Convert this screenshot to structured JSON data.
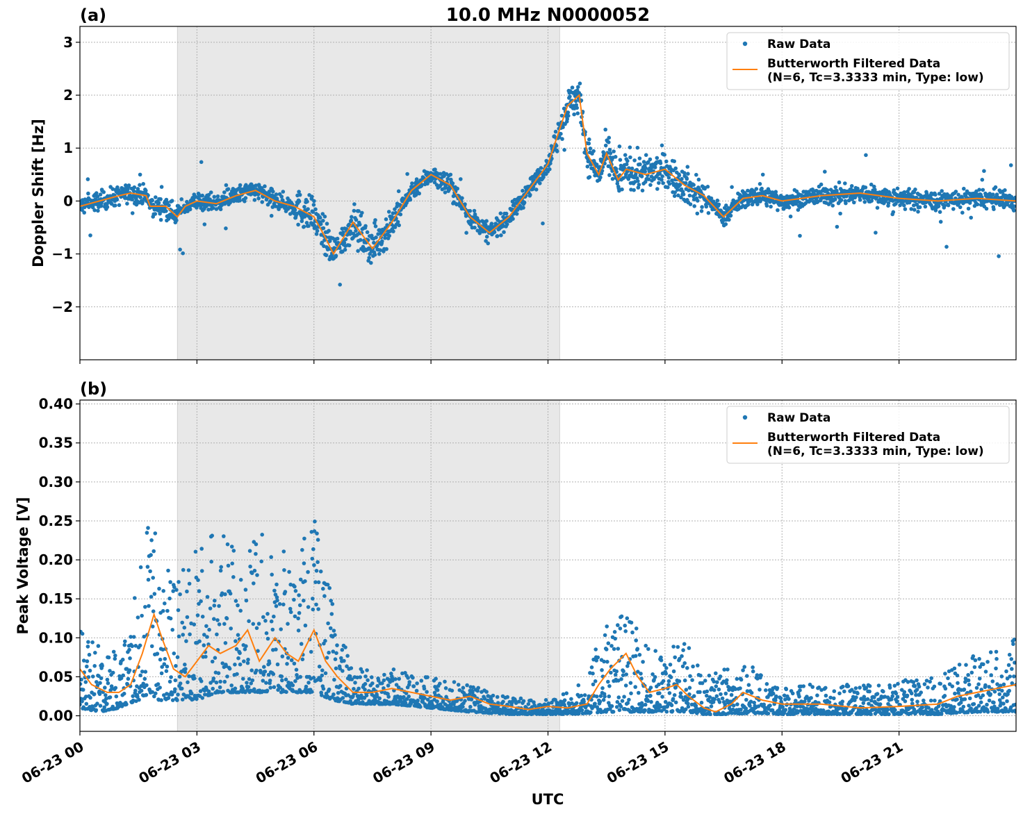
{
  "chart_data": [
    {
      "type": "line",
      "panel_label": "(a)",
      "title": "10.0 MHz N0000052",
      "xlabel": "",
      "ylabel": "Doppler Shift [Hz]",
      "ylim": [
        -3.0,
        3.3
      ],
      "xlim_hours": [
        0,
        24
      ],
      "grid": true,
      "yticks": [
        -2,
        -1,
        0,
        1,
        2,
        3
      ],
      "ytick_labels": [
        "−2",
        "−1",
        "0",
        "1",
        "2",
        "3"
      ],
      "shaded_region_hours": [
        2.5,
        12.3
      ],
      "legend": {
        "placement": "top-right",
        "entries": [
          {
            "label": "Raw Data",
            "marker": "dot",
            "color": "#1f77b4"
          },
          {
            "label": "Butterworth Filtered Data",
            "label2": "(N=6, Tc=3.3333 min, Type: low)",
            "marker": "line",
            "color": "#ff7f0e"
          }
        ]
      },
      "series": [
        {
          "name": "Raw Data",
          "style": "scatter",
          "color": "#1f77b4",
          "band_half_width_hz": 0.18
        },
        {
          "name": "Butterworth Filtered Data",
          "style": "line",
          "color": "#ff7f0e",
          "x_hours": [
            0,
            0.5,
            1.0,
            1.3,
            1.7,
            1.8,
            2.2,
            2.5,
            2.7,
            3.0,
            3.5,
            4.0,
            4.5,
            5.0,
            5.5,
            6.0,
            6.3,
            6.5,
            7.0,
            7.5,
            8.0,
            8.5,
            9.0,
            9.5,
            10.0,
            10.5,
            11.0,
            11.5,
            12.0,
            12.5,
            12.8,
            13.0,
            13.3,
            13.5,
            13.8,
            14.0,
            14.5,
            15.0,
            15.5,
            16.0,
            16.5,
            17.0,
            17.5,
            18.0,
            18.5,
            19.0,
            20.0,
            21.0,
            22.0,
            23.0,
            24.0
          ],
          "values": [
            -0.1,
            0.0,
            0.1,
            0.15,
            0.1,
            -0.1,
            -0.1,
            -0.3,
            -0.1,
            0.0,
            -0.05,
            0.1,
            0.2,
            0.0,
            -0.1,
            -0.3,
            -0.7,
            -1.0,
            -0.4,
            -0.9,
            -0.4,
            0.2,
            0.5,
            0.3,
            -0.3,
            -0.6,
            -0.3,
            0.2,
            0.7,
            1.8,
            2.0,
            0.9,
            0.5,
            0.9,
            0.4,
            0.6,
            0.5,
            0.6,
            0.3,
            0.1,
            -0.3,
            0.05,
            0.1,
            0.0,
            0.05,
            0.1,
            0.15,
            0.05,
            0.0,
            0.05,
            0.0
          ]
        }
      ]
    },
    {
      "type": "line",
      "panel_label": "(b)",
      "title": "",
      "xlabel": "UTC",
      "ylabel": "Peak Voltage [V]",
      "ylim": [
        -0.02,
        0.405
      ],
      "xlim_hours": [
        0,
        24
      ],
      "grid": true,
      "yticks": [
        0.0,
        0.05,
        0.1,
        0.15,
        0.2,
        0.25,
        0.3,
        0.35,
        0.4
      ],
      "ytick_labels": [
        "0.00",
        "0.05",
        "0.10",
        "0.15",
        "0.20",
        "0.25",
        "0.30",
        "0.35",
        "0.40"
      ],
      "xticks_hours": [
        0,
        3,
        6,
        9,
        12,
        15,
        18,
        21
      ],
      "xtick_labels": [
        "06-23 00",
        "06-23 03",
        "06-23 06",
        "06-23 09",
        "06-23 12",
        "06-23 15",
        "06-23 18",
        "06-23 21"
      ],
      "shaded_region_hours": [
        2.5,
        12.3
      ],
      "legend": {
        "placement": "top-right",
        "entries": [
          {
            "label": "Raw Data",
            "marker": "dot",
            "color": "#1f77b4"
          },
          {
            "label": "Butterworth Filtered Data",
            "label2": "(N=6, Tc=3.3333 min, Type: low)",
            "marker": "line",
            "color": "#ff7f0e"
          }
        ]
      },
      "series": [
        {
          "name": "Raw Data",
          "style": "scatter",
          "color": "#1f77b4",
          "envelope_x_hours": [
            0,
            0.5,
            1.0,
            1.5,
            1.8,
            2.0,
            2.5,
            3.0,
            3.5,
            4.0,
            4.5,
            5.0,
            5.5,
            6.0,
            6.5,
            7.0,
            8.0,
            9.0,
            10.0,
            11.0,
            11.8,
            12.3,
            13.0,
            13.5,
            14.0,
            14.5,
            15.0,
            15.5,
            16.0,
            16.5,
            17.0,
            17.5,
            18.0,
            20.0,
            22.0,
            23.0,
            24.0
          ],
          "envelope_low": [
            0.01,
            0.005,
            0.01,
            0.02,
            0.03,
            0.02,
            0.02,
            0.02,
            0.03,
            0.03,
            0.03,
            0.03,
            0.03,
            0.03,
            0.02,
            0.015,
            0.015,
            0.01,
            0.005,
            0.002,
            0.002,
            0.002,
            0.003,
            0.005,
            0.005,
            0.005,
            0.005,
            0.005,
            0.002,
            0.002,
            0.003,
            0.003,
            0.002,
            0.002,
            0.002,
            0.005,
            0.005
          ],
          "envelope_high": [
            0.11,
            0.09,
            0.08,
            0.17,
            0.3,
            0.2,
            0.18,
            0.22,
            0.25,
            0.21,
            0.24,
            0.22,
            0.2,
            0.26,
            0.14,
            0.06,
            0.06,
            0.05,
            0.04,
            0.025,
            0.02,
            0.025,
            0.05,
            0.13,
            0.14,
            0.09,
            0.08,
            0.1,
            0.05,
            0.06,
            0.08,
            0.05,
            0.04,
            0.04,
            0.05,
            0.08,
            0.1
          ]
        },
        {
          "name": "Butterworth Filtered Data",
          "style": "line",
          "color": "#ff7f0e",
          "x_hours": [
            0,
            0.3,
            0.7,
            1.0,
            1.3,
            1.6,
            1.9,
            2.1,
            2.4,
            2.7,
            3.0,
            3.3,
            3.6,
            4.0,
            4.3,
            4.6,
            5.0,
            5.3,
            5.6,
            6.0,
            6.3,
            6.6,
            7.0,
            7.5,
            8.0,
            8.5,
            9.0,
            9.5,
            10.0,
            10.5,
            11.0,
            11.5,
            12.0,
            12.5,
            13.0,
            13.3,
            13.6,
            14.0,
            14.3,
            14.6,
            15.0,
            15.3,
            15.6,
            16.0,
            16.3,
            16.7,
            17.0,
            17.5,
            18.0,
            19.0,
            20.0,
            21.0,
            22.0,
            22.5,
            23.0,
            23.5,
            24.0
          ],
          "values": [
            0.06,
            0.04,
            0.03,
            0.03,
            0.04,
            0.08,
            0.13,
            0.1,
            0.06,
            0.05,
            0.07,
            0.09,
            0.08,
            0.09,
            0.11,
            0.07,
            0.1,
            0.08,
            0.07,
            0.11,
            0.07,
            0.05,
            0.03,
            0.03,
            0.035,
            0.03,
            0.025,
            0.02,
            0.025,
            0.015,
            0.012,
            0.008,
            0.012,
            0.01,
            0.015,
            0.04,
            0.06,
            0.08,
            0.05,
            0.03,
            0.035,
            0.04,
            0.025,
            0.01,
            0.005,
            0.015,
            0.03,
            0.02,
            0.015,
            0.015,
            0.01,
            0.012,
            0.015,
            0.025,
            0.03,
            0.035,
            0.04
          ]
        }
      ]
    }
  ]
}
